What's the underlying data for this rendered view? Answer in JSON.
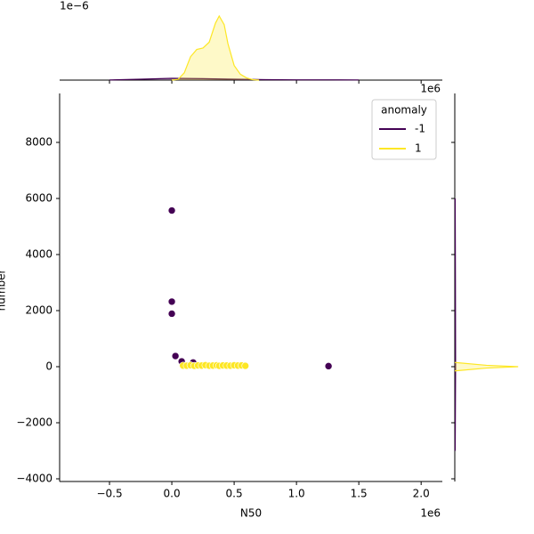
{
  "chart_data": [
    {
      "type": "scatter",
      "xlabel": "N50",
      "ylabel": "number",
      "x_offset": "1e6",
      "xlim": [
        -0.9,
        2.17
      ],
      "xticks": [
        {
          "value": -0.5,
          "label": "−0.5"
        },
        {
          "value": 0,
          "label": "0.0"
        },
        0.5,
        {
          "value": 1,
          "label": "1.0"
        },
        1.5,
        {
          "value": 2,
          "label": "2.0"
        }
      ],
      "ylim": [
        -4095,
        9746
      ],
      "yticks": [
        {
          "value": -4000,
          "label": "−4000"
        },
        {
          "value": -2000,
          "label": "−2000"
        },
        0,
        2000,
        4000,
        6000,
        8000
      ],
      "legend_title": "anomaly",
      "legend": "upper right",
      "series": [
        {
          "name": "-1",
          "color": "#440154",
          "x": [
            0,
            0,
            0,
            0.029,
            0.079,
            0.171,
            1.257
          ],
          "values": [
            5570,
            2320,
            1890,
            380,
            190,
            150,
            20
          ]
        },
        {
          "name": "1",
          "color": "#fde725",
          "x": [
            0.09,
            0.12,
            0.15,
            0.18,
            0.21,
            0.24,
            0.27,
            0.3,
            0.33,
            0.36,
            0.38,
            0.41,
            0.44,
            0.47,
            0.5,
            0.53,
            0.56,
            0.59
          ],
          "values": [
            40,
            35,
            50,
            30,
            45,
            40,
            55,
            35,
            40,
            50,
            30,
            45,
            40,
            35,
            50,
            40,
            45,
            30
          ]
        }
      ]
    },
    {
      "type": "kde",
      "orientation": "vertical",
      "y_offset": "1e−6",
      "ylim": [
        0,
        5
      ],
      "series": [
        {
          "color": "#440154",
          "x": [
            -0.5,
            -0.25,
            0,
            0.25,
            0.5,
            0.75,
            1.0,
            1.25,
            1.5
          ],
          "values": [
            0.01,
            0.06,
            0.12,
            0.1,
            0.06,
            0.03,
            0.02,
            0.02,
            0.01
          ]
        },
        {
          "color": "#fde725",
          "x": [
            0,
            0.05,
            0.1,
            0.15,
            0.2,
            0.25,
            0.3,
            0.35,
            0.38,
            0.42,
            0.45,
            0.5,
            0.55,
            0.6,
            0.65,
            0.7
          ],
          "values": [
            0,
            0.05,
            0.5,
            1.6,
            2.1,
            2.2,
            2.6,
            3.9,
            4.39,
            3.8,
            2.5,
            1.0,
            0.4,
            0.15,
            0.03,
            0
          ]
        }
      ]
    },
    {
      "type": "kde",
      "orientation": "horizontal",
      "xlim": [
        0,
        1
      ],
      "series": [
        {
          "color": "#440154",
          "y": [
            -3000,
            0,
            3000,
            6000
          ],
          "values": [
            0.005,
            0.01,
            0.008,
            0.005
          ]
        },
        {
          "color": "#fde725",
          "y": [
            -150,
            -50,
            0,
            50,
            150
          ],
          "values": [
            0,
            0.4,
            0.8,
            0.4,
            0
          ]
        }
      ]
    }
  ]
}
